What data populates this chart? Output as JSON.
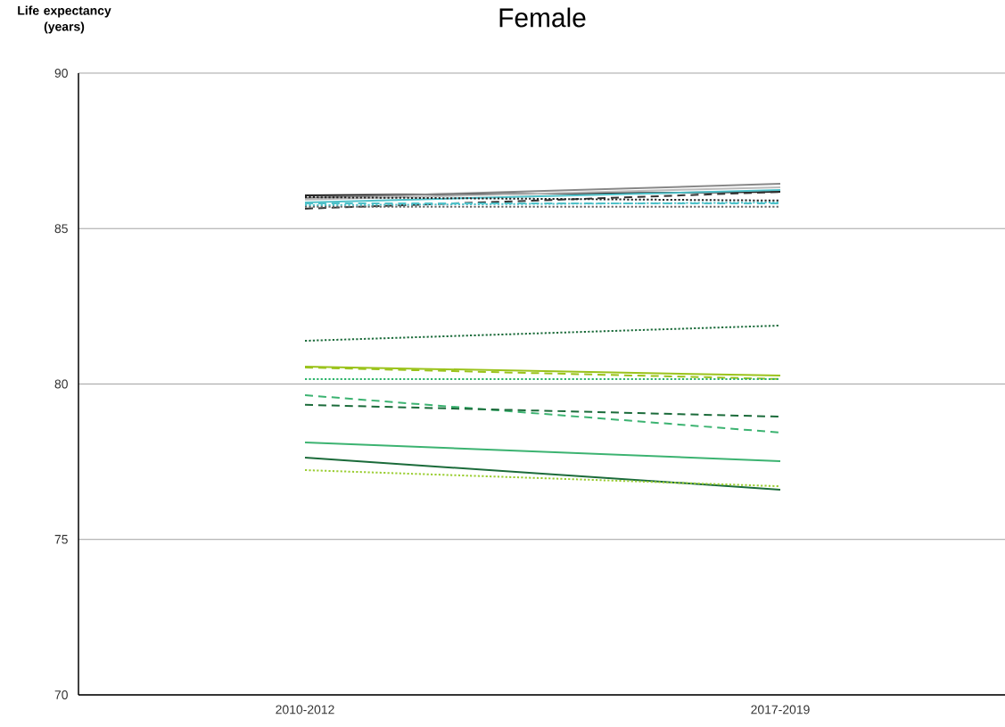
{
  "chart_data": {
    "type": "line",
    "title": "Female",
    "ylabel": "Life expectancy (years)",
    "categories": [
      "2010-2012",
      "2017-2019"
    ],
    "ylim": [
      70,
      90
    ],
    "yticks": [
      70,
      75,
      80,
      85,
      90
    ],
    "grid": "y",
    "series": [
      {
        "color": "#222222",
        "line_style": "solid",
        "values": [
          86.07,
          86.18
        ]
      },
      {
        "color": "#888888",
        "line_style": "solid",
        "values": [
          85.98,
          86.44
        ]
      },
      {
        "color": "#bbbbbb",
        "line_style": "solid",
        "values": [
          85.93,
          86.33
        ]
      },
      {
        "color": "#4fc1c9",
        "line_style": "solid",
        "values": [
          85.84,
          86.24
        ]
      },
      {
        "color": "#333333",
        "line_style": "dashed",
        "values": [
          85.64,
          86.18
        ]
      },
      {
        "color": "#222222",
        "line_style": "dotted",
        "values": [
          86.01,
          85.9
        ]
      },
      {
        "color": "#4fc1c9",
        "line_style": "dotted",
        "values": [
          85.75,
          85.84
        ]
      },
      {
        "color": "#4fc1c9",
        "line_style": "dashed",
        "values": [
          85.81,
          85.81
        ]
      },
      {
        "color": "#666666",
        "line_style": "dotted",
        "values": [
          85.7,
          85.7
        ]
      },
      {
        "color": "#1b6b3a",
        "line_style": "dotted",
        "values": [
          81.39,
          81.88
        ]
      },
      {
        "color": "#9bc31c",
        "line_style": "solid",
        "values": [
          80.56,
          80.27
        ]
      },
      {
        "color": "#9bc31c",
        "line_style": "dashed",
        "values": [
          80.53,
          80.16
        ]
      },
      {
        "color": "#2bb36a",
        "line_style": "dotted",
        "values": [
          80.16,
          80.16
        ]
      },
      {
        "color": "#3cb371",
        "line_style": "dashed",
        "values": [
          79.64,
          78.44
        ]
      },
      {
        "color": "#1b6b3a",
        "line_style": "dashed",
        "values": [
          79.33,
          78.95
        ]
      },
      {
        "color": "#3cb371",
        "line_style": "solid",
        "values": [
          78.12,
          77.52
        ]
      },
      {
        "color": "#1b6b3a",
        "line_style": "solid",
        "values": [
          77.63,
          76.6
        ]
      },
      {
        "color": "#9acd32",
        "line_style": "dotted",
        "values": [
          77.23,
          76.71
        ]
      }
    ]
  }
}
